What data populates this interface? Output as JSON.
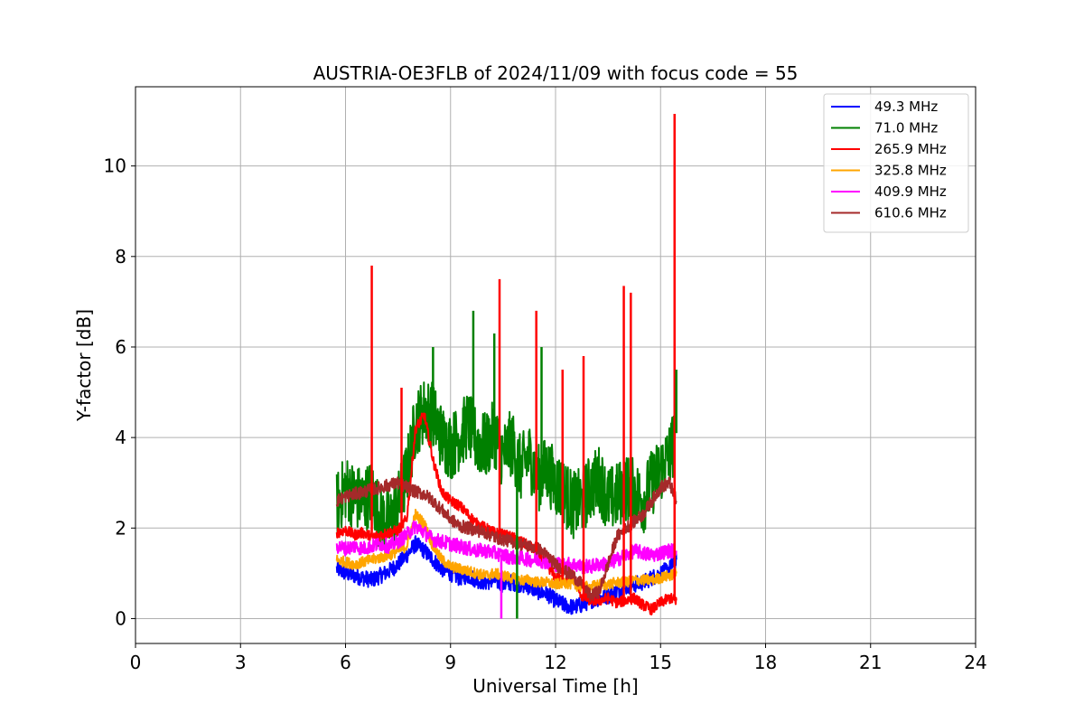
{
  "chart_data": {
    "type": "line",
    "title": "AUSTRIA-OE3FLB of 2024/11/09 with focus code = 55",
    "xlabel": "Universal Time [h]",
    "ylabel": "Y-factor [dB]",
    "xlim": [
      0,
      24
    ],
    "ylim": [
      -0.55,
      11.75
    ],
    "xticks": [
      0,
      3,
      6,
      9,
      12,
      15,
      18,
      21,
      24
    ],
    "yticks": [
      0,
      2,
      4,
      6,
      8,
      10
    ],
    "grid": true,
    "legend_position": "top-right",
    "series": [
      {
        "name": " 49.3 MHz",
        "color": "#0000ff",
        "x": [
          5.75,
          6.0,
          6.25,
          6.5,
          6.75,
          7.0,
          7.25,
          7.5,
          7.75,
          8.0,
          8.25,
          8.5,
          8.75,
          9.0,
          9.25,
          9.5,
          9.75,
          10.0,
          10.25,
          10.5,
          10.75,
          11.0,
          11.25,
          11.5,
          11.75,
          12.0,
          12.25,
          12.5,
          12.75,
          13.0,
          13.25,
          13.5,
          13.75,
          14.0,
          14.25,
          14.5,
          14.75,
          15.0,
          15.25,
          15.45
        ],
        "y": [
          1.1,
          1.0,
          0.95,
          0.9,
          0.85,
          0.95,
          1.05,
          1.2,
          1.4,
          1.65,
          1.5,
          1.3,
          1.1,
          1.0,
          0.9,
          0.95,
          0.85,
          0.8,
          0.85,
          0.75,
          0.8,
          0.75,
          0.7,
          0.6,
          0.55,
          0.4,
          0.3,
          0.25,
          0.3,
          0.4,
          0.45,
          0.5,
          0.6,
          0.7,
          0.75,
          0.8,
          0.9,
          1.0,
          1.1,
          1.3
        ]
      },
      {
        "name": " 71.0 MHz",
        "color": "#008000",
        "x": [
          5.75,
          6.0,
          6.25,
          6.5,
          6.75,
          7.0,
          7.25,
          7.5,
          7.75,
          8.0,
          8.25,
          8.5,
          8.75,
          9.0,
          9.25,
          9.5,
          9.75,
          10.0,
          10.25,
          10.5,
          10.75,
          11.0,
          11.25,
          11.5,
          11.75,
          12.0,
          12.25,
          12.5,
          12.75,
          13.0,
          13.25,
          13.5,
          13.75,
          14.0,
          14.25,
          14.5,
          14.75,
          15.0,
          15.25,
          15.45
        ],
        "y": [
          2.5,
          2.9,
          2.7,
          2.6,
          2.8,
          2.2,
          2.1,
          2.5,
          3.2,
          4.3,
          4.6,
          4.5,
          4.0,
          3.8,
          4.0,
          4.3,
          3.9,
          3.8,
          4.1,
          3.6,
          3.9,
          3.3,
          3.6,
          3.1,
          3.3,
          3.0,
          2.8,
          2.5,
          2.6,
          2.9,
          3.1,
          2.6,
          2.7,
          2.9,
          2.8,
          2.6,
          3.0,
          3.3,
          3.6,
          4.1
        ]
      },
      {
        "name": "265.9 MHz",
        "color": "#ff0000",
        "x": [
          5.75,
          6.0,
          6.25,
          6.5,
          6.75,
          7.0,
          7.25,
          7.5,
          7.75,
          8.0,
          8.25,
          8.5,
          8.75,
          9.0,
          9.25,
          9.5,
          9.75,
          10.0,
          10.25,
          10.5,
          10.75,
          11.0,
          11.25,
          11.5,
          11.75,
          12.0,
          12.25,
          12.5,
          12.75,
          13.0,
          13.25,
          13.5,
          13.75,
          14.0,
          14.25,
          14.5,
          14.75,
          15.0,
          15.25,
          15.45
        ],
        "y": [
          1.9,
          1.95,
          1.85,
          1.9,
          1.8,
          1.85,
          1.9,
          1.95,
          2.2,
          4.2,
          4.5,
          3.5,
          2.8,
          2.6,
          2.5,
          2.3,
          2.1,
          2.0,
          1.9,
          1.85,
          1.8,
          1.7,
          1.6,
          1.45,
          1.2,
          0.9,
          0.85,
          0.95,
          0.5,
          0.4,
          0.4,
          0.45,
          0.35,
          0.4,
          0.45,
          0.3,
          0.2,
          0.35,
          0.45,
          0.4
        ]
      },
      {
        "name": "325.8 MHz",
        "color": "#ffa500",
        "x": [
          5.75,
          6.0,
          6.25,
          6.5,
          6.75,
          7.0,
          7.25,
          7.5,
          7.75,
          8.0,
          8.25,
          8.5,
          8.75,
          9.0,
          9.25,
          9.5,
          9.75,
          10.0,
          10.25,
          10.5,
          10.75,
          11.0,
          11.25,
          11.5,
          11.75,
          12.0,
          12.25,
          12.5,
          12.75,
          13.0,
          13.25,
          13.5,
          13.75,
          14.0,
          14.25,
          14.5,
          14.75,
          15.0,
          15.25,
          15.45
        ],
        "y": [
          1.3,
          1.25,
          1.2,
          1.25,
          1.3,
          1.35,
          1.4,
          1.5,
          1.6,
          2.3,
          2.1,
          1.6,
          1.3,
          1.15,
          1.1,
          1.05,
          1.0,
          0.95,
          1.0,
          0.95,
          0.9,
          0.85,
          0.85,
          0.8,
          0.8,
          0.75,
          0.8,
          0.75,
          0.7,
          0.7,
          0.75,
          0.75,
          0.8,
          0.8,
          0.85,
          0.85,
          0.85,
          0.9,
          0.95,
          1.0
        ]
      },
      {
        "name": "409.9 MHz",
        "color": "#ff00ff",
        "x": [
          5.75,
          6.0,
          6.25,
          6.5,
          6.75,
          7.0,
          7.25,
          7.5,
          7.75,
          8.0,
          8.25,
          8.5,
          8.75,
          9.0,
          9.25,
          9.5,
          9.75,
          10.0,
          10.25,
          10.5,
          10.75,
          11.0,
          11.25,
          11.5,
          11.75,
          12.0,
          12.25,
          12.5,
          12.75,
          13.0,
          13.25,
          13.5,
          13.75,
          14.0,
          14.25,
          14.5,
          14.75,
          15.0,
          15.25,
          15.45
        ],
        "y": [
          1.6,
          1.55,
          1.6,
          1.55,
          1.6,
          1.65,
          1.6,
          1.7,
          1.85,
          2.05,
          1.9,
          1.75,
          1.7,
          1.65,
          1.6,
          1.55,
          1.5,
          1.5,
          1.45,
          1.4,
          1.35,
          1.35,
          1.3,
          1.3,
          1.25,
          1.2,
          1.2,
          1.2,
          1.15,
          1.15,
          1.2,
          1.2,
          1.3,
          1.4,
          1.5,
          1.45,
          1.4,
          1.45,
          1.5,
          1.5
        ]
      },
      {
        "name": "610.6 MHz",
        "color": "#a52a2a",
        "x": [
          5.75,
          6.0,
          6.25,
          6.5,
          6.75,
          7.0,
          7.25,
          7.5,
          7.75,
          8.0,
          8.25,
          8.5,
          8.75,
          9.0,
          9.25,
          9.5,
          9.75,
          10.0,
          10.25,
          10.5,
          10.75,
          11.0,
          11.25,
          11.5,
          11.75,
          12.0,
          12.25,
          12.5,
          12.75,
          13.0,
          13.25,
          13.5,
          13.75,
          14.0,
          14.25,
          14.5,
          14.75,
          15.0,
          15.25,
          15.45
        ],
        "y": [
          2.6,
          2.7,
          2.75,
          2.8,
          2.85,
          2.9,
          2.95,
          3.0,
          2.9,
          2.8,
          2.75,
          2.6,
          2.4,
          2.2,
          2.05,
          2.0,
          1.95,
          1.9,
          1.8,
          1.75,
          1.7,
          1.65,
          1.6,
          1.55,
          1.4,
          1.2,
          1.05,
          0.95,
          0.75,
          0.5,
          0.6,
          1.2,
          1.8,
          2.0,
          2.15,
          2.3,
          2.6,
          2.9,
          3.0,
          2.6
        ]
      }
    ],
    "spikes": [
      {
        "series": 2,
        "x": 6.75,
        "y": 7.8
      },
      {
        "series": 2,
        "x": 10.4,
        "y": 7.5
      },
      {
        "series": 2,
        "x": 11.45,
        "y": 6.8
      },
      {
        "series": 2,
        "x": 12.2,
        "y": 5.5
      },
      {
        "series": 2,
        "x": 12.8,
        "y": 5.8
      },
      {
        "series": 2,
        "x": 13.95,
        "y": 7.35
      },
      {
        "series": 2,
        "x": 14.15,
        "y": 7.2
      },
      {
        "series": 2,
        "x": 15.4,
        "y": 11.15
      },
      {
        "series": 2,
        "x": 7.6,
        "y": 5.1
      },
      {
        "series": 1,
        "x": 9.65,
        "y": 6.8
      },
      {
        "series": 1,
        "x": 10.25,
        "y": 6.3
      },
      {
        "series": 1,
        "x": 11.6,
        "y": 6.0
      },
      {
        "series": 1,
        "x": 8.5,
        "y": 6.0
      },
      {
        "series": 1,
        "x": 15.45,
        "y": 5.5
      },
      {
        "series": 4,
        "x": 10.45,
        "y": 0.0
      },
      {
        "series": 1,
        "x": 10.9,
        "y": 0.0
      }
    ]
  }
}
